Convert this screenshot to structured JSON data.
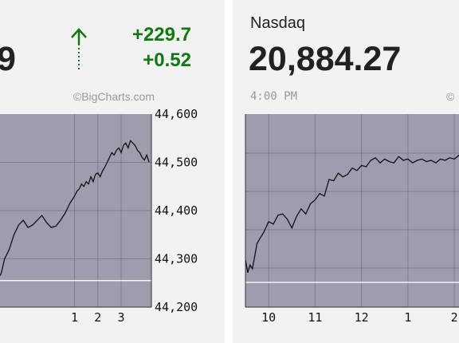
{
  "left_widget": {
    "value_fragment": "9",
    "change_points": "+229.7",
    "change_percent": "+0.52",
    "direction_icon": "up-arrow-icon",
    "credit": "©BigCharts.com",
    "status_color": "#0d7a0d"
  },
  "right_widget": {
    "name": "Nasdaq",
    "value": "20,884.27",
    "time": "4:00 PM",
    "credit_fragment": "©"
  },
  "chart_data": [
    {
      "type": "line",
      "title": "",
      "xlabel": "",
      "ylabel": "",
      "ylim": [
        44200,
        44600
      ],
      "y_ticks": [
        "44,600",
        "44,500",
        "44,400",
        "44,300",
        "44,200"
      ],
      "x_tick_labels": [
        "1",
        "2",
        "3"
      ],
      "x": [
        -2.2,
        -2.15,
        -2.0,
        -1.8,
        -1.6,
        -1.4,
        -1.2,
        -1.0,
        -0.8,
        -0.6,
        -0.4,
        -0.2,
        0.0,
        0.2,
        0.4,
        0.6,
        0.8,
        1.0,
        1.1,
        1.2,
        1.3,
        1.4,
        1.5,
        1.6,
        1.7,
        1.8,
        1.9,
        2.0,
        2.1,
        2.2,
        2.3,
        2.4,
        2.5,
        2.6,
        2.7,
        2.8,
        2.9,
        3.0,
        3.1,
        3.2,
        3.3,
        3.4,
        3.5,
        3.6,
        3.7,
        3.8,
        3.9,
        4.0,
        4.1,
        4.2
      ],
      "series": [
        {
          "values": [
            44265,
            44270,
            44300,
            44320,
            44350,
            44370,
            44380,
            44365,
            44370,
            44380,
            44390,
            44375,
            44365,
            44368,
            44380,
            44395,
            44415,
            44430,
            44440,
            44445,
            44455,
            44450,
            44460,
            44455,
            44470,
            44460,
            44475,
            44478,
            44470,
            44482,
            44490,
            44500,
            44510,
            44520,
            44515,
            44525,
            44530,
            44520,
            44535,
            44540,
            44530,
            44545,
            44540,
            44535,
            44525,
            44520,
            44510,
            44505,
            44515,
            44500
          ]
        }
      ],
      "reference_line": 44255,
      "grid": true
    },
    {
      "type": "line",
      "title": "",
      "xlabel": "",
      "ylabel": "",
      "x_tick_labels": [
        "10",
        "11",
        "12",
        "1",
        "2"
      ],
      "x": [
        9.5,
        9.55,
        9.6,
        9.65,
        9.7,
        9.75,
        9.8,
        9.9,
        10.0,
        10.1,
        10.2,
        10.3,
        10.4,
        10.5,
        10.6,
        10.7,
        10.8,
        10.9,
        11.0,
        11.1,
        11.2,
        11.3,
        11.4,
        11.5,
        11.6,
        11.7,
        11.8,
        11.9,
        12.0,
        12.1,
        12.2,
        12.3,
        12.4,
        12.5,
        12.6,
        12.7,
        12.8,
        12.9,
        13.0,
        13.1,
        13.2,
        13.3,
        13.4,
        13.5,
        13.6,
        13.7,
        13.8,
        13.9,
        14.0,
        14.1,
        14.2
      ],
      "series": [
        {
          "values": [
            0.12,
            0.02,
            0.08,
            0.05,
            0.15,
            0.25,
            0.28,
            0.34,
            0.42,
            0.4,
            0.47,
            0.48,
            0.44,
            0.37,
            0.46,
            0.52,
            0.48,
            0.56,
            0.59,
            0.64,
            0.62,
            0.75,
            0.74,
            0.8,
            0.77,
            0.79,
            0.84,
            0.82,
            0.86,
            0.85,
            0.9,
            0.92,
            0.88,
            0.91,
            0.89,
            0.88,
            0.93,
            0.9,
            0.91,
            0.88,
            0.9,
            0.91,
            0.89,
            0.9,
            0.88,
            0.91,
            0.9,
            0.92,
            0.91,
            0.94,
            0.95
          ]
        }
      ],
      "reference_line": 0.0,
      "grid": true
    }
  ]
}
